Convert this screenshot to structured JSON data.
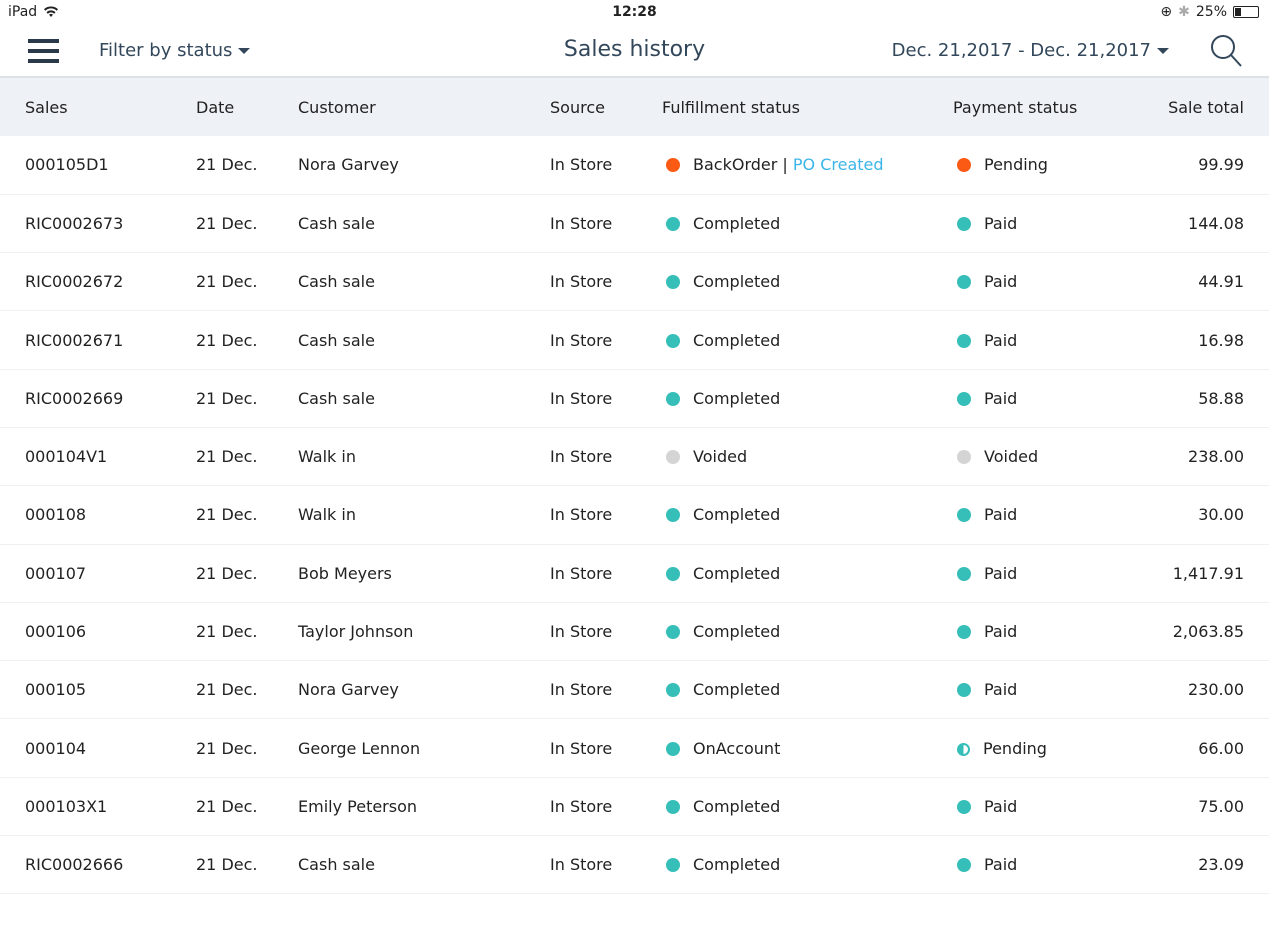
{
  "status_bar": {
    "device": "iPad",
    "time": "12:28",
    "battery": "25%"
  },
  "header": {
    "filter_label": "Filter by status",
    "title": "Sales history",
    "date_range": "Dec. 21,2017 - Dec. 21,2017"
  },
  "colors": {
    "completed": "#35bfb8",
    "pending": "#fa5a14",
    "voided": "#d4d4d4",
    "link": "#3bb5e8"
  },
  "columns": [
    "Sales",
    "Date",
    "Customer",
    "Source",
    "Fulfillment status",
    "Payment status",
    "Sale total"
  ],
  "rows": [
    {
      "sale": "000105D1",
      "date": "21 Dec.",
      "customer": "Nora Garvey",
      "source": "In Store",
      "fulfillment": "BackOrder",
      "fulfillment_link": "PO Created",
      "fstate": "pending",
      "payment": "Pending",
      "pstate": "pending",
      "total": "99.99"
    },
    {
      "sale": "RIC0002673",
      "date": "21 Dec.",
      "customer": "Cash sale",
      "source": "In Store",
      "fulfillment": "Completed",
      "fstate": "completed",
      "payment": "Paid",
      "pstate": "completed",
      "total": "144.08"
    },
    {
      "sale": "RIC0002672",
      "date": "21 Dec.",
      "customer": "Cash sale",
      "source": "In Store",
      "fulfillment": "Completed",
      "fstate": "completed",
      "payment": "Paid",
      "pstate": "completed",
      "total": "44.91"
    },
    {
      "sale": "RIC0002671",
      "date": "21 Dec.",
      "customer": "Cash sale",
      "source": "In Store",
      "fulfillment": "Completed",
      "fstate": "completed",
      "payment": "Paid",
      "pstate": "completed",
      "total": "16.98"
    },
    {
      "sale": "RIC0002669",
      "date": "21 Dec.",
      "customer": "Cash sale",
      "source": "In Store",
      "fulfillment": "Completed",
      "fstate": "completed",
      "payment": "Paid",
      "pstate": "completed",
      "total": "58.88"
    },
    {
      "sale": "000104V1",
      "date": "21 Dec.",
      "customer": "Walk in",
      "source": "In Store",
      "fulfillment": "Voided",
      "fstate": "voided",
      "payment": "Voided",
      "pstate": "voided",
      "total": "238.00"
    },
    {
      "sale": "000108",
      "date": "21 Dec.",
      "customer": "Walk in",
      "source": "In Store",
      "fulfillment": "Completed",
      "fstate": "completed",
      "payment": "Paid",
      "pstate": "completed",
      "total": "30.00"
    },
    {
      "sale": "000107",
      "date": "21 Dec.",
      "customer": "Bob Meyers",
      "source": "In Store",
      "fulfillment": "Completed",
      "fstate": "completed",
      "payment": "Paid",
      "pstate": "completed",
      "total": "1,417.91"
    },
    {
      "sale": "000106",
      "date": "21 Dec.",
      "customer": "Taylor Johnson",
      "source": "In Store",
      "fulfillment": "Completed",
      "fstate": "completed",
      "payment": "Paid",
      "pstate": "completed",
      "total": "2,063.85"
    },
    {
      "sale": "000105",
      "date": "21 Dec.",
      "customer": "Nora Garvey",
      "source": "In Store",
      "fulfillment": "Completed",
      "fstate": "completed",
      "payment": "Paid",
      "pstate": "completed",
      "total": "230.00"
    },
    {
      "sale": "000104",
      "date": "21 Dec.",
      "customer": "George Lennon",
      "source": "In Store",
      "fulfillment": "OnAccount",
      "fstate": "completed",
      "payment": "Pending",
      "pstate": "partial",
      "total": "66.00"
    },
    {
      "sale": "000103X1",
      "date": "21 Dec.",
      "customer": "Emily Peterson",
      "source": "In Store",
      "fulfillment": "Completed",
      "fstate": "completed",
      "payment": "Paid",
      "pstate": "completed",
      "total": "75.00"
    },
    {
      "sale": "RIC0002666",
      "date": "21 Dec.",
      "customer": "Cash sale",
      "source": "In Store",
      "fulfillment": "Completed",
      "fstate": "completed",
      "payment": "Paid",
      "pstate": "completed",
      "total": "23.09"
    }
  ]
}
